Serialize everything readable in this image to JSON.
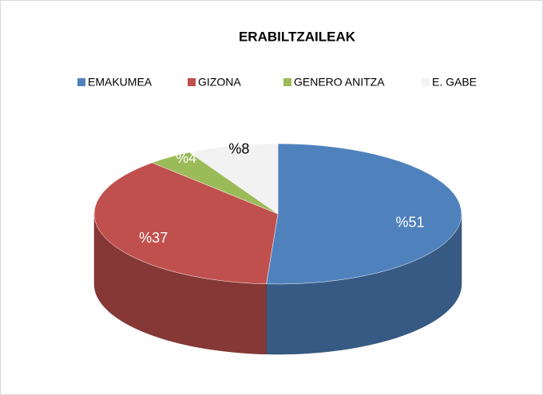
{
  "chart_data": {
    "type": "pie",
    "title": "ERABILTZAILEAK",
    "categories": [
      "EMAKUMEA",
      "GIZONA",
      "GENERO ANITZA",
      "E. GABE"
    ],
    "values": [
      51,
      37,
      4,
      8
    ],
    "value_labels": [
      "%51",
      "%37",
      "%4",
      "%8"
    ],
    "colors": [
      "#4f81bd",
      "#c0504d",
      "#9bbb59",
      "#f2f2f2"
    ],
    "legend": "top"
  }
}
